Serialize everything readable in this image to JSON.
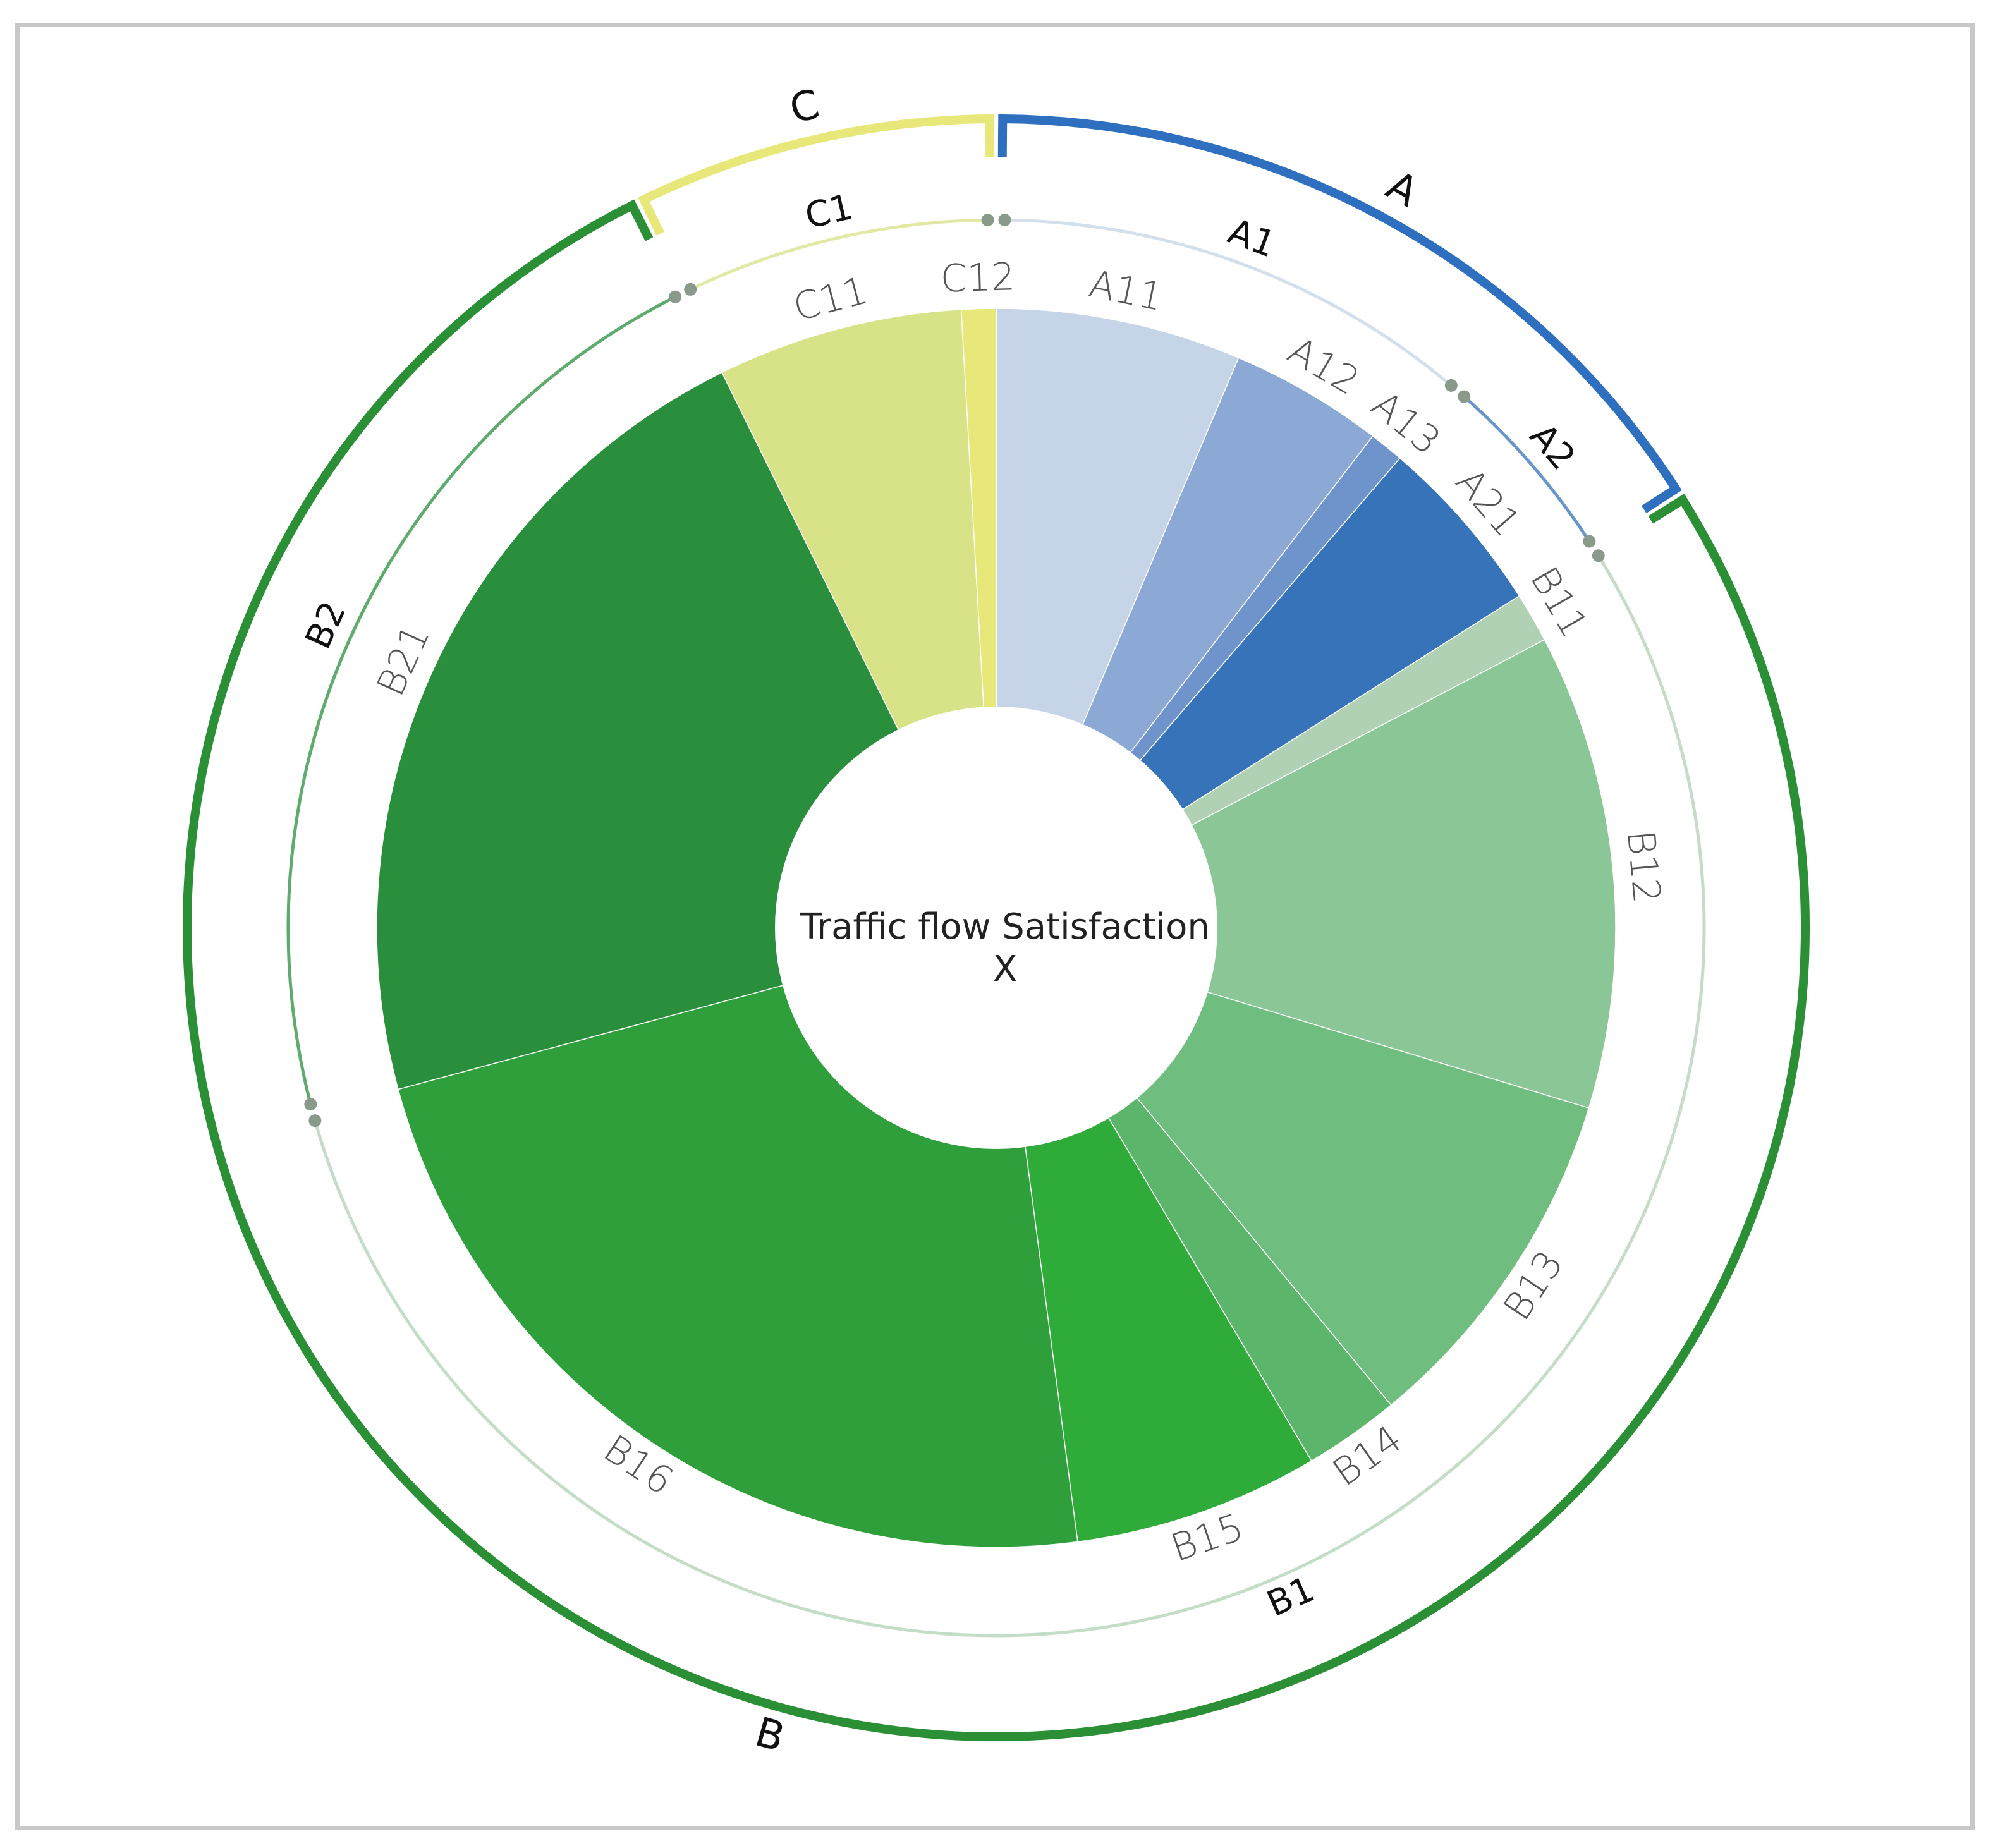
{
  "chart_data": {
    "type": "sunburst",
    "center_label": [
      "Traffic flow Satisfaction",
      "X"
    ],
    "groups": [
      {
        "name": "A",
        "color": "#2f6fbf"
      },
      {
        "name": "B",
        "color": "#2a8f35"
      },
      {
        "name": "C",
        "color": "#e8e87a"
      }
    ],
    "subgroups": [
      {
        "name": "A1",
        "group": "A"
      },
      {
        "name": "A2",
        "group": "A"
      },
      {
        "name": "B1",
        "group": "B"
      },
      {
        "name": "B2",
        "group": "B"
      },
      {
        "name": "C1",
        "group": "C"
      }
    ],
    "segments": [
      {
        "name": "A11",
        "group": "A",
        "subgroup": "A1",
        "value": 0.064,
        "color": "#c5d4e6"
      },
      {
        "name": "A12",
        "group": "A",
        "subgroup": "A1",
        "value": 0.04,
        "color": "#8ca8d4"
      },
      {
        "name": "A13",
        "group": "A",
        "subgroup": "A1",
        "value": 0.009,
        "color": "#6f93cb"
      },
      {
        "name": "A21",
        "group": "A",
        "subgroup": "A2",
        "value": 0.047,
        "color": "#3673b8"
      },
      {
        "name": "B11",
        "group": "B",
        "subgroup": "B1",
        "value": 0.013,
        "color": "#b0d1b4"
      },
      {
        "name": "B12",
        "group": "B",
        "subgroup": "B1",
        "value": 0.124,
        "color": "#8ac696"
      },
      {
        "name": "B13",
        "group": "B",
        "subgroup": "B1",
        "value": 0.093,
        "color": "#6fbe7f"
      },
      {
        "name": "B14",
        "group": "B",
        "subgroup": "B1",
        "value": 0.025,
        "color": "#5bb56a"
      },
      {
        "name": "B15",
        "group": "B",
        "subgroup": "B1",
        "value": 0.064,
        "color": "#2eab39"
      },
      {
        "name": "B16",
        "group": "B",
        "subgroup": "B1",
        "value": 0.229,
        "color": "#2f9f3c"
      },
      {
        "name": "B21",
        "group": "B",
        "subgroup": "B2",
        "value": 0.219,
        "color": "#2a8f3c"
      },
      {
        "name": "C11",
        "group": "C",
        "subgroup": "C1",
        "value": 0.064,
        "color": "#d8e287"
      },
      {
        "name": "C12",
        "group": "C",
        "subgroup": "C1",
        "value": 0.009,
        "color": "#e8e87a"
      }
    ]
  }
}
